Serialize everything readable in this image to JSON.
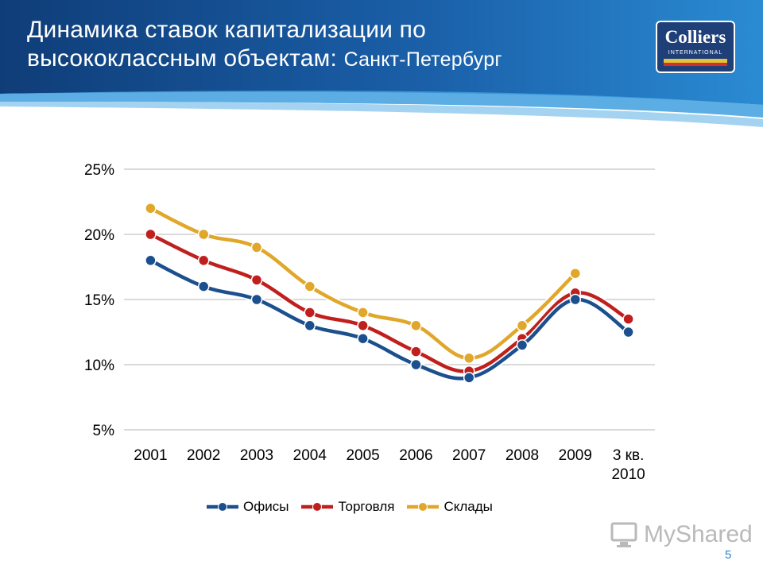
{
  "header": {
    "title_line1": "Динамика ставок капитализации по",
    "title_line2": "высококлассным объектам:",
    "title_city": "Санкт-Петербург"
  },
  "logo": {
    "name": "Colliers",
    "tagline": "INTERNATIONAL",
    "stripe_colors": [
      "#e3c33b",
      "#d0312d"
    ]
  },
  "watermark": {
    "icon": "mysharedscreen-icon",
    "text": "MyShared"
  },
  "page_number": "5",
  "colors": {
    "header_dark": "#0f3d78",
    "header_light": "#2a8bd3"
  },
  "chart_data": {
    "type": "line",
    "categories": [
      "2001",
      "2002",
      "2003",
      "2004",
      "2005",
      "2006",
      "2007",
      "2008",
      "2009",
      "3 кв. 2010"
    ],
    "series": [
      {
        "name": "Офисы",
        "color": "#1b4f8e",
        "values": [
          18,
          16,
          15,
          13,
          12,
          10,
          9,
          11.5,
          15,
          12.5
        ]
      },
      {
        "name": "Торговля",
        "color": "#c0201d",
        "values": [
          20,
          18,
          16.5,
          14,
          13,
          11,
          9.5,
          12,
          15.5,
          13.5
        ]
      },
      {
        "name": "Склады",
        "color": "#e0a72a",
        "values": [
          22,
          20,
          19,
          16,
          14,
          13,
          10.5,
          13,
          17,
          null
        ]
      }
    ],
    "yticks": [
      5,
      10,
      15,
      20,
      25
    ],
    "ytick_labels": [
      "5%",
      "10%",
      "15%",
      "20%",
      "25%"
    ],
    "ylim": [
      5,
      25
    ],
    "grid": true,
    "legend_position": "bottom",
    "title": "",
    "xlabel": "",
    "ylabel": ""
  }
}
